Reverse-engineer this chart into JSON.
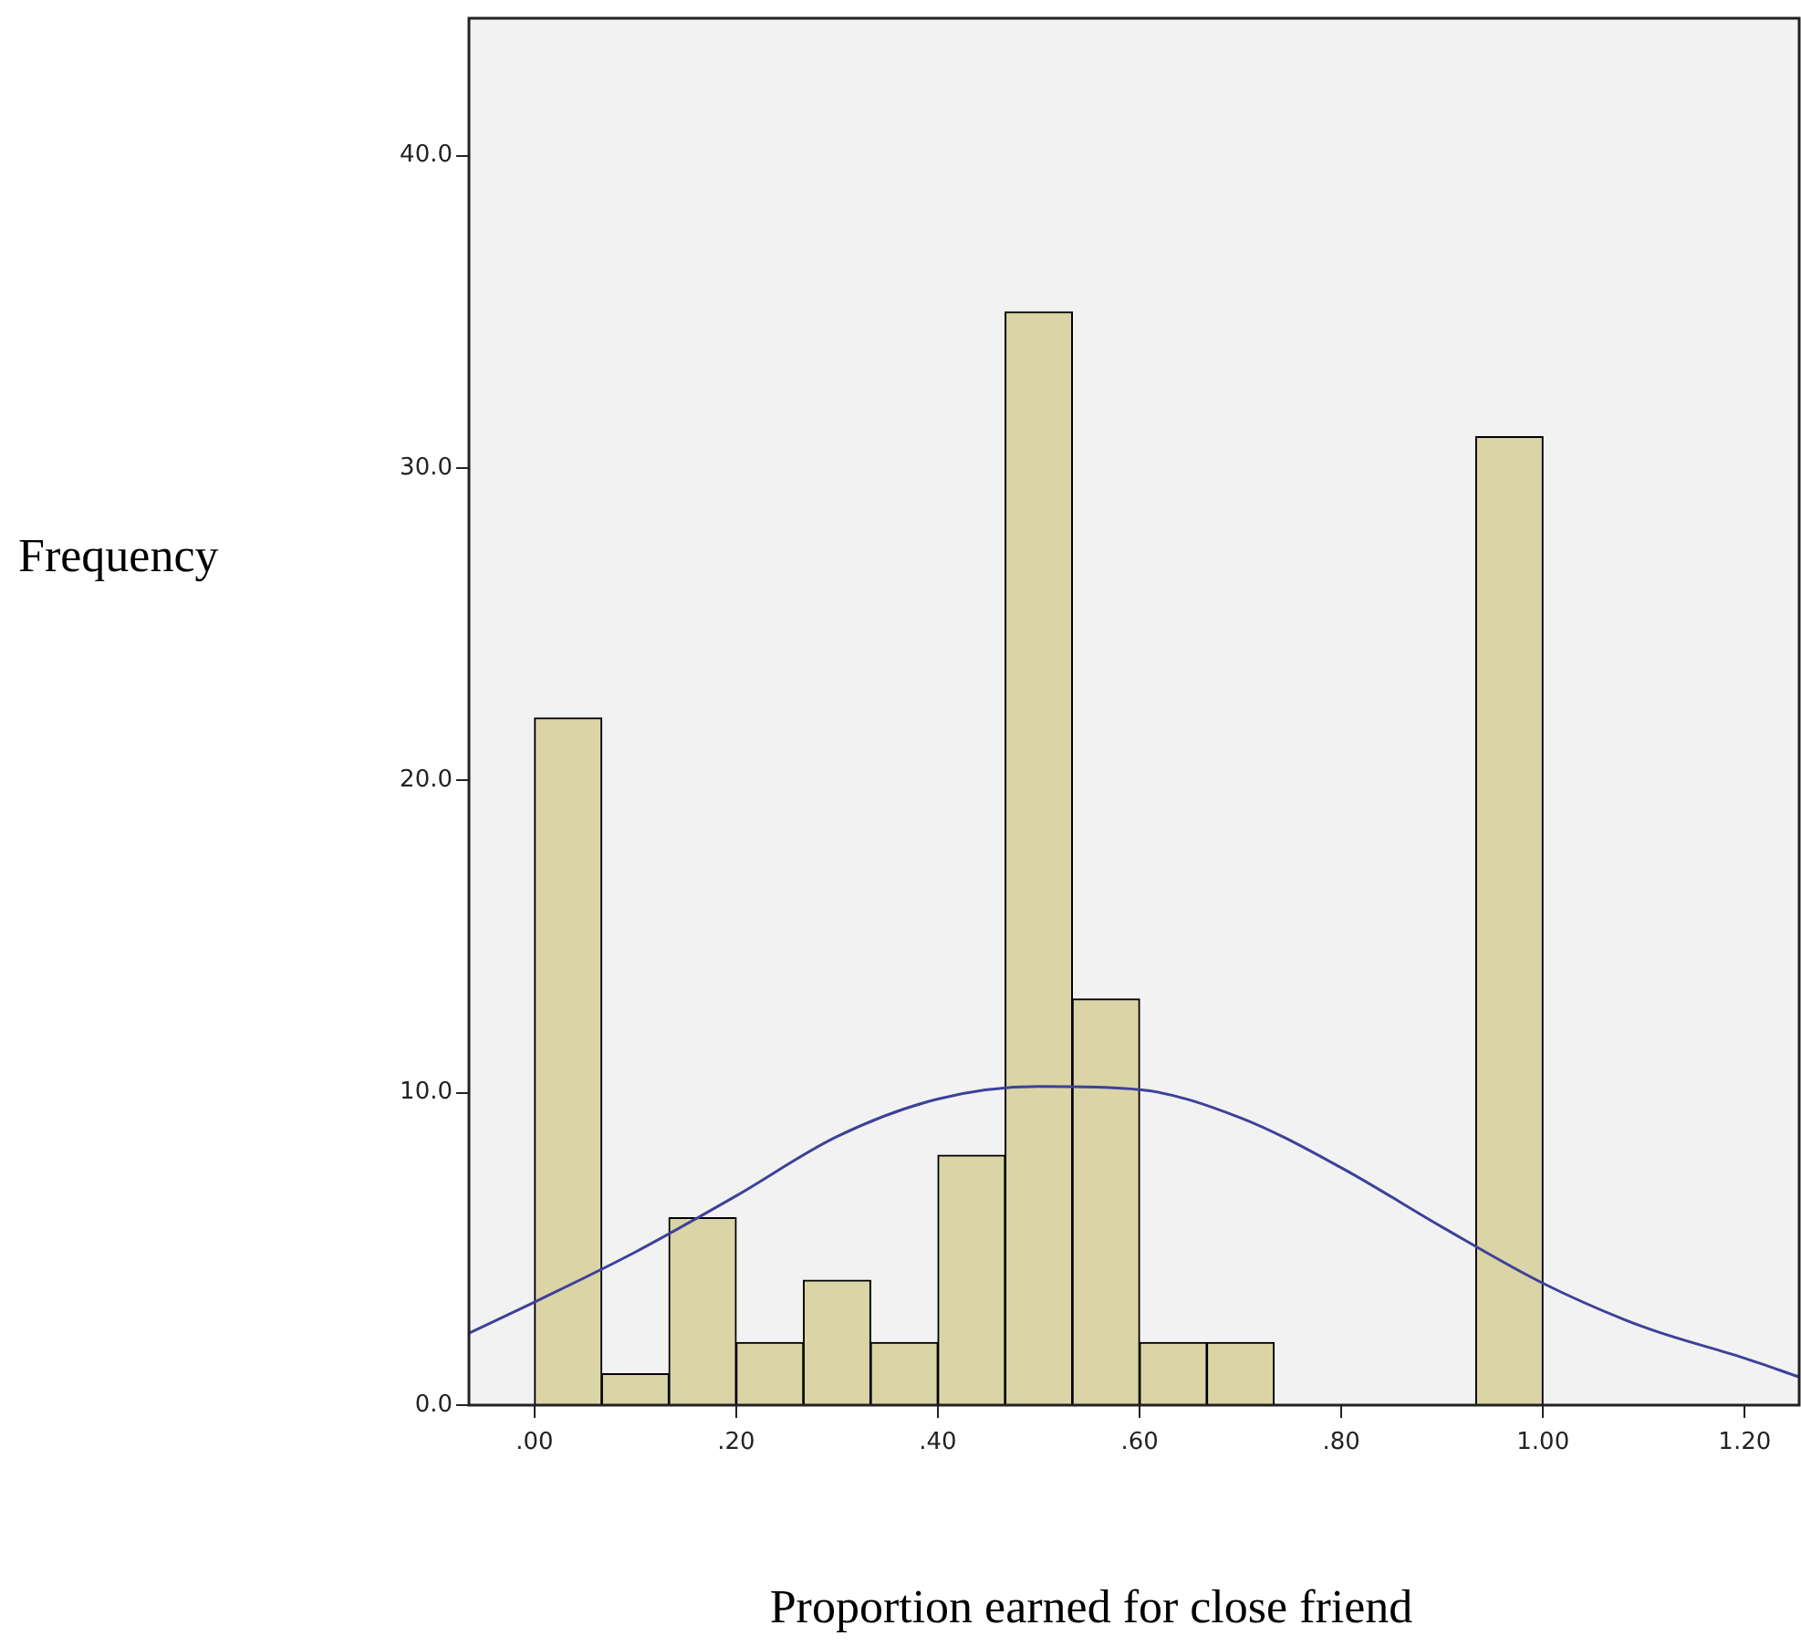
{
  "chart_data": {
    "type": "histogram",
    "xlabel": "Proportion earned for close friend",
    "ylabel": "Frequency",
    "bins": [
      0,
      0.0667,
      0.1333,
      0.2,
      0.2667,
      0.3333,
      0.4,
      0.4667,
      0.5333,
      0.6,
      0.6667,
      0.7333,
      0.8,
      0.8667,
      0.9333,
      1.0
    ],
    "series": [
      {
        "color": "#dbd4a6",
        "values": [
          22,
          1,
          6,
          2,
          4,
          2,
          8,
          35,
          13,
          2,
          2,
          0,
          0,
          0,
          31
        ]
      },
      {
        "type": "line",
        "color": "#3d4199",
        "x": [
          -0.065,
          0,
          0.1,
          0.2,
          0.3,
          0.4,
          0.5,
          0.6,
          0.7,
          0.8,
          0.9,
          1.0,
          1.1,
          1.2,
          1.254
        ],
        "values": [
          2.3,
          3.3,
          4.9,
          6.7,
          8.6,
          9.8,
          10.2,
          10.1,
          9.2,
          7.6,
          5.7,
          3.9,
          2.5,
          1.5,
          0.9
        ]
      }
    ],
    "xlim": [
      -0.065,
      1.254
    ],
    "ylim": [
      0,
      44.4
    ],
    "xticks": [
      {
        "value": 0,
        "label": ".00"
      },
      {
        "value": 0.2,
        "label": ".20"
      },
      {
        "value": 0.4,
        "label": ".40"
      },
      {
        "value": 0.6,
        "label": ".60"
      },
      {
        "value": 0.8,
        "label": ".80"
      },
      {
        "value": 1,
        "label": "1.00"
      },
      {
        "value": 1.2,
        "label": "1.20"
      }
    ],
    "yticks": [
      {
        "value": 0,
        "label": "0.0"
      },
      {
        "value": 10,
        "label": "10.0"
      },
      {
        "value": 20,
        "label": "20.0"
      },
      {
        "value": 30,
        "label": "30.0"
      },
      {
        "value": 40,
        "label": "40.0"
      }
    ],
    "grid": false,
    "marker": "none"
  }
}
